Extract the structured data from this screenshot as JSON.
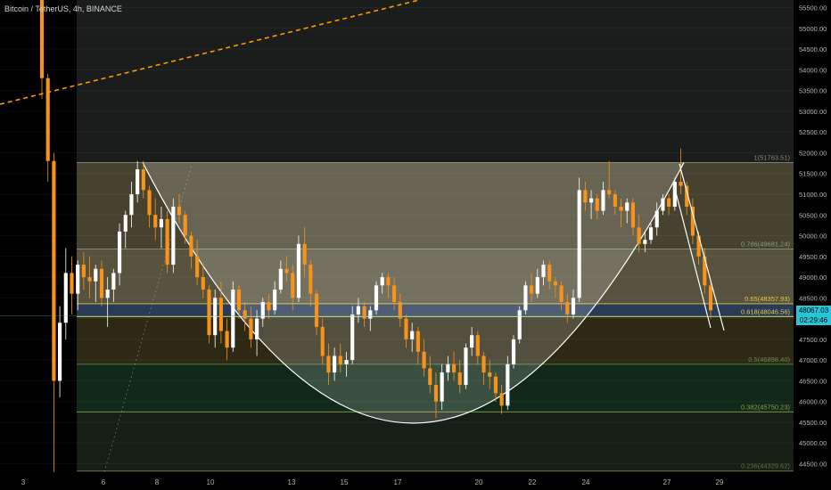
{
  "header": {
    "title": "Bitcoin / TetherUS, 4h, BINANCE"
  },
  "price_badge": {
    "price": "48067.03",
    "countdown": "02:29:46"
  },
  "colors": {
    "background": "#000000",
    "up_candle": "#ffffff",
    "down_candle": "#f7931a",
    "trendline": "#ff9800",
    "cup_curve": "#ffffff",
    "badge": "#26c6da"
  },
  "chart_data": {
    "type": "candlestick",
    "title": "Bitcoin / TetherUS, 4h, BINANCE",
    "ylim": [
      44000,
      56000
    ],
    "y_ticks": [
      44500,
      45000,
      45500,
      46000,
      46500,
      47000,
      47500,
      48000,
      48500,
      49000,
      49500,
      50000,
      50500,
      51000,
      51500,
      52000,
      52500,
      53000,
      53500,
      54000,
      54500,
      55000,
      55500
    ],
    "x_ticks": [
      "3",
      "6",
      "8",
      "10",
      "13",
      "15",
      "17",
      "20",
      "22",
      "24",
      "27",
      "29"
    ],
    "grid": true,
    "fib_levels": [
      {
        "ratio": "1",
        "price": 51763.51,
        "label": "1(51763.51)"
      },
      {
        "ratio": "0.786",
        "price": 49681.24,
        "label": "0.786(49681.24)"
      },
      {
        "ratio": "0.65",
        "price": 48357.93,
        "label": "0.65(48357.93)"
      },
      {
        "ratio": "0.618",
        "price": 48046.56,
        "label": "0.618(48046.56)"
      },
      {
        "ratio": "0.5",
        "price": 46898.4,
        "label": "0.5(46898.40)"
      },
      {
        "ratio": "0.382",
        "price": 45750.23,
        "label": "0.382(45750.23)"
      },
      {
        "ratio": "0.236",
        "price": 44329.62,
        "label": "0.236(44329.62)"
      }
    ],
    "candles": [
      [
        56200,
        56400,
        53300,
        53800
      ],
      [
        53800,
        53900,
        51300,
        51800
      ],
      [
        51800,
        52000,
        44100,
        46500
      ],
      [
        46500,
        48300,
        46100,
        47900
      ],
      [
        47900,
        49700,
        47500,
        49100
      ],
      [
        49100,
        49500,
        48100,
        48600
      ],
      [
        48600,
        49400,
        48200,
        49300
      ],
      [
        49300,
        49600,
        48700,
        49000
      ],
      [
        49000,
        49500,
        48500,
        48900
      ],
      [
        48900,
        49300,
        48400,
        49200
      ],
      [
        49200,
        49400,
        48300,
        48500
      ],
      [
        48500,
        49000,
        47800,
        48700
      ],
      [
        48700,
        49200,
        48400,
        49100
      ],
      [
        49100,
        50300,
        48800,
        50100
      ],
      [
        50100,
        50600,
        49700,
        50500
      ],
      [
        50500,
        51300,
        50200,
        51000
      ],
      [
        51000,
        51800,
        50800,
        51600
      ],
      [
        51600,
        51800,
        50900,
        51100
      ],
      [
        51100,
        51200,
        50200,
        50500
      ],
      [
        50500,
        50900,
        49900,
        50200
      ],
      [
        50200,
        50700,
        49700,
        50400
      ],
      [
        50400,
        50600,
        49100,
        49300
      ],
      [
        49300,
        50900,
        49100,
        50700
      ],
      [
        50700,
        51000,
        50300,
        50500
      ],
      [
        50500,
        50600,
        49800,
        50000
      ],
      [
        50000,
        50100,
        49200,
        49500
      ],
      [
        49500,
        49900,
        48800,
        49000
      ],
      [
        49000,
        49300,
        48500,
        48700
      ],
      [
        48700,
        48800,
        47400,
        47600
      ],
      [
        47600,
        48700,
        47300,
        48500
      ],
      [
        48500,
        48900,
        47400,
        47700
      ],
      [
        47700,
        48000,
        47000,
        47300
      ],
      [
        47300,
        48900,
        47200,
        48700
      ],
      [
        48700,
        48800,
        48000,
        48200
      ],
      [
        48200,
        48400,
        47700,
        48000
      ],
      [
        48000,
        48300,
        47300,
        47500
      ],
      [
        47500,
        48200,
        47100,
        48000
      ],
      [
        48000,
        48500,
        47800,
        48400
      ],
      [
        48400,
        48600,
        48000,
        48200
      ],
      [
        48200,
        48900,
        48100,
        48700
      ],
      [
        48700,
        49400,
        48600,
        49200
      ],
      [
        49200,
        49500,
        48900,
        49100
      ],
      [
        49100,
        49300,
        48200,
        48500
      ],
      [
        48500,
        50000,
        48400,
        49800
      ],
      [
        49800,
        50200,
        49000,
        49300
      ],
      [
        49300,
        49400,
        48300,
        48600
      ],
      [
        48600,
        48700,
        47600,
        47800
      ],
      [
        47800,
        48000,
        46900,
        47100
      ],
      [
        47100,
        47400,
        46400,
        46700
      ],
      [
        46700,
        47300,
        46500,
        47100
      ],
      [
        47100,
        47400,
        46700,
        46900
      ],
      [
        46900,
        47200,
        46600,
        47000
      ],
      [
        47000,
        48300,
        46900,
        48100
      ],
      [
        48100,
        48500,
        47900,
        48300
      ],
      [
        48300,
        48400,
        47800,
        48000
      ],
      [
        48000,
        48300,
        47700,
        48200
      ],
      [
        48200,
        48900,
        48100,
        48800
      ],
      [
        48800,
        49100,
        48600,
        49000
      ],
      [
        49000,
        49100,
        48500,
        48800
      ],
      [
        48800,
        49000,
        48200,
        48400
      ],
      [
        48400,
        48600,
        47800,
        48000
      ],
      [
        48000,
        48100,
        47300,
        47500
      ],
      [
        47500,
        47900,
        47200,
        47700
      ],
      [
        47700,
        47800,
        46900,
        47200
      ],
      [
        47200,
        47500,
        46600,
        46800
      ],
      [
        46800,
        47100,
        46200,
        46400
      ],
      [
        46400,
        46700,
        45600,
        46000
      ],
      [
        46000,
        46900,
        45800,
        46700
      ],
      [
        46700,
        47100,
        46500,
        46900
      ],
      [
        46900,
        47200,
        46500,
        46700
      ],
      [
        46700,
        47000,
        46200,
        46400
      ],
      [
        46400,
        47400,
        46300,
        47300
      ],
      [
        47300,
        47800,
        47100,
        47600
      ],
      [
        47600,
        47700,
        46900,
        47100
      ],
      [
        47100,
        47200,
        46400,
        46700
      ],
      [
        46700,
        47000,
        46300,
        46600
      ],
      [
        46600,
        46700,
        46000,
        46200
      ],
      [
        46200,
        46400,
        45700,
        45900
      ],
      [
        45900,
        47100,
        45800,
        46900
      ],
      [
        46900,
        47600,
        46800,
        47500
      ],
      [
        47500,
        48300,
        47400,
        48200
      ],
      [
        48200,
        48900,
        48100,
        48800
      ],
      [
        48800,
        49100,
        48400,
        48600
      ],
      [
        48600,
        49200,
        48500,
        49000
      ],
      [
        49000,
        49400,
        48800,
        49300
      ],
      [
        49300,
        49400,
        48700,
        48900
      ],
      [
        48900,
        49000,
        48500,
        48800
      ],
      [
        48800,
        48900,
        48200,
        48400
      ],
      [
        48400,
        48600,
        47900,
        48100
      ],
      [
        48100,
        48700,
        48000,
        48500
      ],
      [
        48500,
        51400,
        48400,
        51100
      ],
      [
        51100,
        51300,
        50600,
        50800
      ],
      [
        50800,
        51100,
        50400,
        50900
      ],
      [
        50900,
        51000,
        50400,
        50600
      ],
      [
        50600,
        51300,
        50500,
        51100
      ],
      [
        51100,
        51800,
        50900,
        51000
      ],
      [
        51000,
        51100,
        50500,
        50700
      ],
      [
        50700,
        50900,
        50200,
        50600
      ],
      [
        50600,
        50900,
        50300,
        50800
      ],
      [
        50800,
        50900,
        50000,
        50200
      ],
      [
        50200,
        50500,
        49600,
        49800
      ],
      [
        49800,
        50100,
        49600,
        49900
      ],
      [
        49900,
        50300,
        49800,
        50200
      ],
      [
        50200,
        50800,
        50000,
        50600
      ],
      [
        50600,
        51000,
        50500,
        50900
      ],
      [
        50900,
        51000,
        50500,
        50700
      ],
      [
        50700,
        51400,
        50600,
        51300
      ],
      [
        51300,
        52100,
        51000,
        51200
      ],
      [
        51200,
        51300,
        50500,
        50700
      ],
      [
        50700,
        50900,
        49800,
        50000
      ],
      [
        50000,
        50100,
        49300,
        49500
      ],
      [
        49500,
        49700,
        48600,
        48800
      ],
      [
        48800,
        48900,
        48000,
        48200
      ]
    ]
  }
}
